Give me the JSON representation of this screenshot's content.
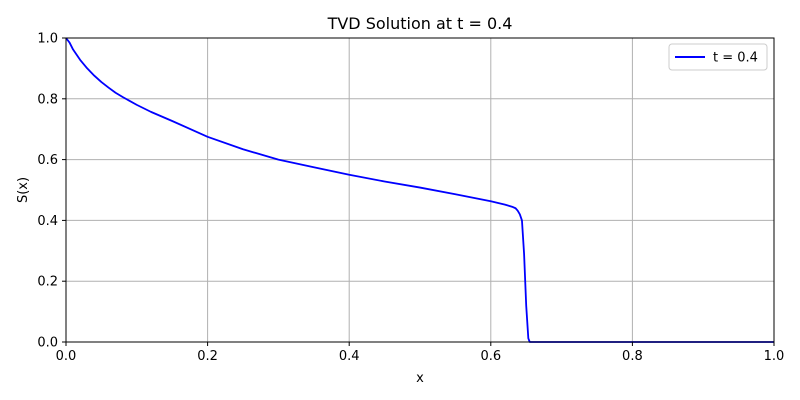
{
  "chart_data": {
    "type": "line",
    "title": "TVD Solution at t = 0.4",
    "xlabel": "x",
    "ylabel": "S(x)",
    "xlim": [
      0.0,
      1.0
    ],
    "ylim": [
      0.0,
      1.0
    ],
    "xticks": [
      0.0,
      0.2,
      0.4,
      0.6,
      0.8,
      1.0
    ],
    "xtick_labels": [
      "0.0",
      "0.2",
      "0.4",
      "0.6",
      "0.8",
      "1.0"
    ],
    "yticks": [
      0.0,
      0.2,
      0.4,
      0.6,
      0.8,
      1.0
    ],
    "ytick_labels": [
      "0.0",
      "0.2",
      "0.4",
      "0.6",
      "0.8",
      "1.0"
    ],
    "grid": true,
    "legend_position": "top-right",
    "series": [
      {
        "name": "t = 0.4",
        "color": "#0000ff",
        "x": [
          0.0,
          0.005,
          0.01,
          0.02,
          0.03,
          0.04,
          0.05,
          0.06,
          0.07,
          0.08,
          0.1,
          0.12,
          0.15,
          0.2,
          0.25,
          0.3,
          0.35,
          0.4,
          0.45,
          0.5,
          0.55,
          0.6,
          0.62,
          0.63,
          0.635,
          0.638,
          0.641,
          0.644,
          0.647,
          0.65,
          0.653,
          0.655,
          0.66,
          0.7,
          0.8,
          0.9,
          1.0
        ],
        "y": [
          1.0,
          0.985,
          0.962,
          0.928,
          0.9,
          0.876,
          0.855,
          0.837,
          0.82,
          0.806,
          0.78,
          0.757,
          0.727,
          0.675,
          0.634,
          0.6,
          0.575,
          0.55,
          0.528,
          0.508,
          0.486,
          0.463,
          0.452,
          0.445,
          0.44,
          0.432,
          0.42,
          0.4,
          0.29,
          0.12,
          0.012,
          0.0,
          0.0,
          0.0,
          0.0,
          0.0,
          0.0
        ]
      }
    ]
  }
}
